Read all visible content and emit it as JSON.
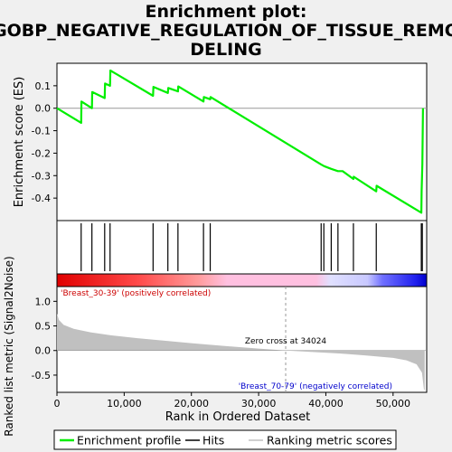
{
  "chart_data": {
    "type": "line",
    "title_lines": [
      "Enrichment plot:",
      "GOBP_NEGATIVE_REGULATION_OF_TISSUE_REMO",
      "DELING"
    ],
    "xlabel": "Rank in Ordered Dataset",
    "xlim": [
      0,
      55000
    ],
    "x_ticks": [
      0,
      10000,
      20000,
      30000,
      40000,
      50000
    ],
    "x_tick_labels": [
      "0",
      "10,000",
      "20,000",
      "30,000",
      "40,000",
      "50,000"
    ],
    "panels": {
      "es": {
        "ylabel": "Enrichment score (ES)",
        "ylim": [
          -0.5,
          0.2
        ],
        "y_ticks": [
          0.1,
          0.0,
          -0.1,
          -0.2,
          -0.3,
          -0.4
        ],
        "y_tick_labels": [
          "0.1",
          "0.0",
          "-0.1",
          "-0.2",
          "-0.3",
          "-0.4"
        ],
        "line_color": "#00ee00",
        "zero_line_color": "#999999"
      },
      "metric": {
        "ylabel": "Ranked list metric (Signal2Noise)",
        "ylim": [
          -0.85,
          1.3
        ],
        "y_ticks": [
          1.0,
          0.5,
          0.0,
          -0.5
        ],
        "y_tick_labels": [
          "1.0",
          "0.5",
          "0.0",
          "-0.5"
        ],
        "fill_color": "#c0c0c0",
        "zero_cross_label": "Zero cross at 34024",
        "zero_cross_x": 34024,
        "positive_label": "'Breast_30-39' (positively correlated)",
        "negative_label": "'Breast_70-79' (negatively correlated)",
        "positive_color": "#cc0000",
        "negative_color": "#0000cc"
      }
    },
    "series": [
      {
        "name": "Enrichment profile",
        "color": "#00ee00",
        "points": [
          [
            0,
            0.0
          ],
          [
            3600,
            -0.065
          ],
          [
            3650,
            0.03
          ],
          [
            5200,
            0.0
          ],
          [
            5250,
            0.072
          ],
          [
            7100,
            0.045
          ],
          [
            7150,
            0.11
          ],
          [
            7900,
            0.1
          ],
          [
            7950,
            0.168
          ],
          [
            14300,
            0.055
          ],
          [
            14350,
            0.095
          ],
          [
            16500,
            0.068
          ],
          [
            16550,
            0.09
          ],
          [
            18000,
            0.075
          ],
          [
            18050,
            0.097
          ],
          [
            21800,
            0.03
          ],
          [
            21850,
            0.05
          ],
          [
            22800,
            0.04
          ],
          [
            22850,
            0.05
          ],
          [
            39300,
            -0.25
          ],
          [
            39750,
            -0.258
          ],
          [
            40800,
            -0.27
          ],
          [
            41800,
            -0.28
          ],
          [
            42500,
            -0.28
          ],
          [
            44100,
            -0.315
          ],
          [
            44150,
            -0.305
          ],
          [
            47500,
            -0.37
          ],
          [
            47550,
            -0.345
          ],
          [
            54200,
            -0.465
          ],
          [
            54250,
            -0.37
          ],
          [
            54350,
            -0.25
          ],
          [
            54450,
            0.0
          ]
        ]
      }
    ],
    "hits": [
      3600,
      5200,
      7100,
      7900,
      14300,
      16500,
      18000,
      21800,
      22800,
      39300,
      39700,
      40800,
      41800,
      44100,
      47500,
      54200,
      54350
    ],
    "metric_curve": [
      [
        0,
        0.75
      ],
      [
        300,
        0.62
      ],
      [
        1000,
        0.52
      ],
      [
        2500,
        0.44
      ],
      [
        5000,
        0.37
      ],
      [
        8000,
        0.31
      ],
      [
        12000,
        0.25
      ],
      [
        16000,
        0.2
      ],
      [
        20000,
        0.15
      ],
      [
        25000,
        0.09
      ],
      [
        30000,
        0.04
      ],
      [
        34024,
        0.0
      ],
      [
        38000,
        -0.03
      ],
      [
        42000,
        -0.06
      ],
      [
        46000,
        -0.1
      ],
      [
        50000,
        -0.15
      ],
      [
        52000,
        -0.2
      ],
      [
        53500,
        -0.28
      ],
      [
        54300,
        -0.45
      ],
      [
        54600,
        -0.8
      ],
      [
        54700,
        -0.8
      ]
    ],
    "legend": {
      "entries": [
        {
          "label": "Enrichment profile",
          "color": "#00ee00"
        },
        {
          "label": "Hits",
          "color": "#000000"
        },
        {
          "label": "Ranking metric scores",
          "color": "#c0c0c0"
        }
      ]
    }
  }
}
